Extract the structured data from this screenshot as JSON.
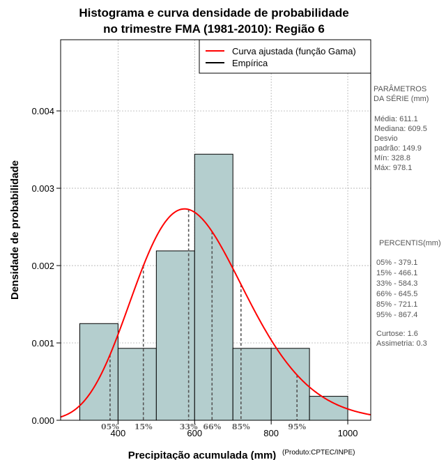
{
  "chart_data": {
    "type": "histogram",
    "title": [
      "Histograma e curva densidade de probabilidade",
      "no trimestre FMA (1981-2010): Região 6"
    ],
    "xlabel": "Precipitação acumulada (mm)",
    "ylabel": "Densidade de probabilidade",
    "credit": "(Produto:CPTEC/INPE)",
    "xlim": [
      250,
      1060
    ],
    "ylim": [
      0,
      0.00492
    ],
    "xticks": [
      400,
      600,
      800,
      1000
    ],
    "yticks": [
      0.0,
      0.001,
      0.002,
      0.003,
      0.004
    ],
    "ytick_labels": [
      "0.000",
      "0.001",
      "0.002",
      "0.003",
      "0.004"
    ],
    "grid": true,
    "bins": [
      {
        "from": 300,
        "to": 400,
        "density": 0.00125
      },
      {
        "from": 400,
        "to": 500,
        "density": 0.00093
      },
      {
        "from": 500,
        "to": 600,
        "density": 0.00219
      },
      {
        "from": 600,
        "to": 700,
        "density": 0.00344
      },
      {
        "from": 700,
        "to": 800,
        "density": 0.00093
      },
      {
        "from": 800,
        "to": 900,
        "density": 0.00093
      },
      {
        "from": 900,
        "to": 1000,
        "density": 0.00031
      }
    ],
    "gamma_fit": {
      "shape": 16.6,
      "rate": 0.0272
    },
    "percentile_markers": [
      {
        "label": "05%",
        "value": 379.1
      },
      {
        "label": "15%",
        "value": 466.1
      },
      {
        "label": "33%",
        "value": 584.3
      },
      {
        "label": "66%",
        "value": 645.5
      },
      {
        "label": "85%",
        "value": 721.1
      },
      {
        "label": "95%",
        "value": 867.4
      }
    ],
    "legend": {
      "position": "top-right",
      "entries": [
        {
          "label": "Curva ajustada (função Gama)",
          "color": "#ff0000"
        },
        {
          "label": "Empírica",
          "color": "#000000"
        }
      ]
    },
    "colors": {
      "bar_fill": "#b4cece",
      "curve": "#ff0000",
      "grid": "#b0b0b0",
      "markers": "#555555"
    }
  },
  "side_panel": {
    "params_title": [
      "PARÂMETROS",
      " DA SÉRIE (mm)"
    ],
    "params": [
      "Média:  611.1",
      "Mediana:  609.5",
      "Desvio",
      "padrão:  149.9",
      "Mín:  328.8",
      "Máx:  978.1"
    ],
    "percentis_title": "PERCENTIS(mm)",
    "percentis": [
      "05% -  379.1",
      "15% -  466.1",
      "33% -  584.3",
      "66% -  645.5",
      "85% -  721.1",
      "95% -  867.4"
    ],
    "extra": [
      "Curtose:  1.6",
      "Assimetria:  0.3"
    ]
  }
}
